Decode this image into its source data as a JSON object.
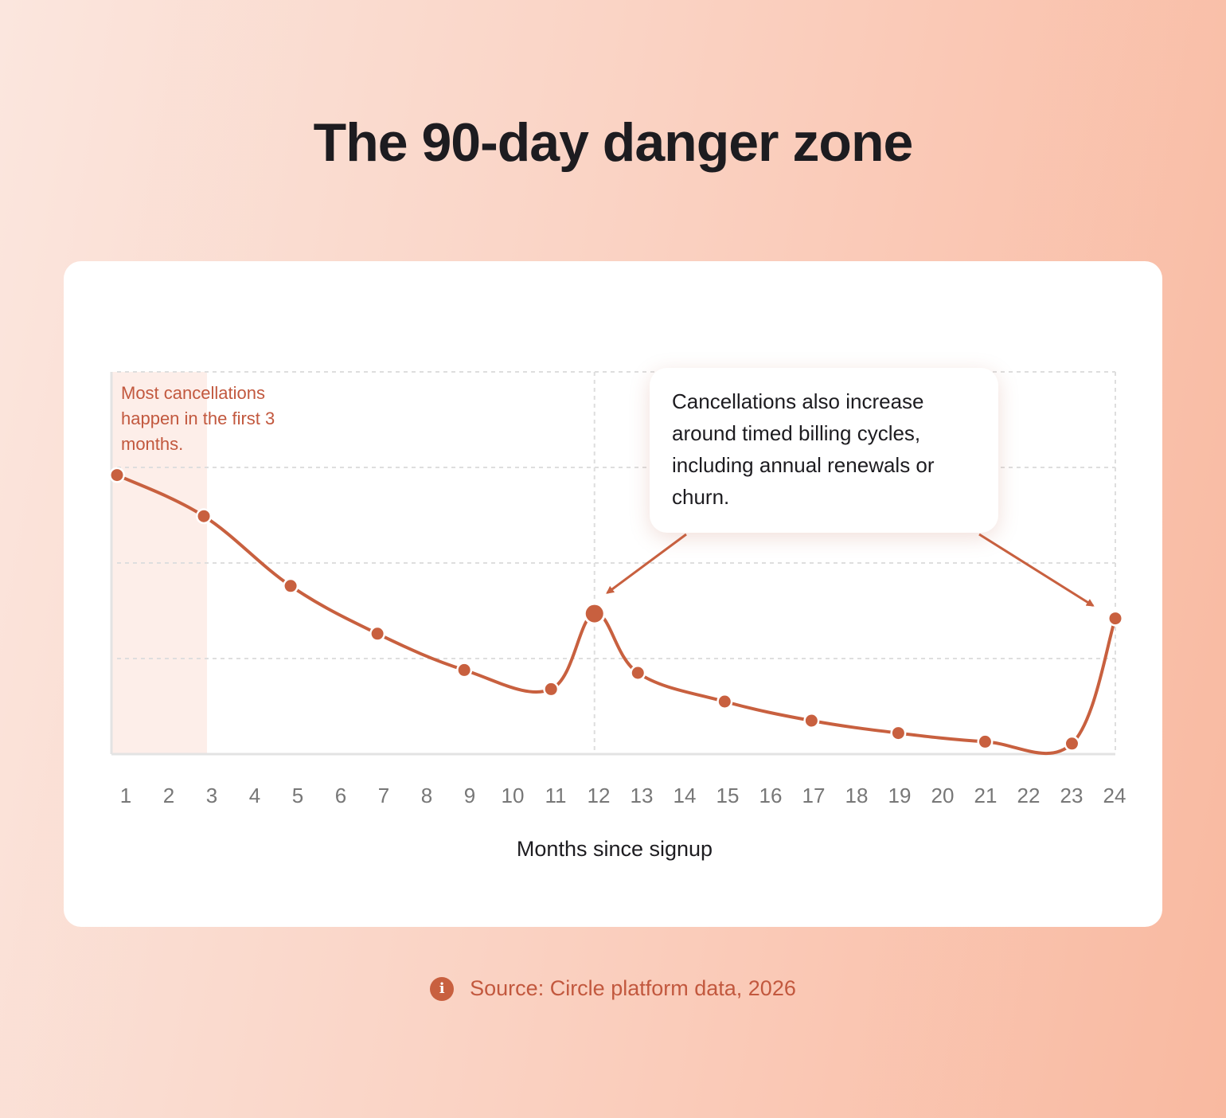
{
  "title": "The 90-day danger zone",
  "source": {
    "icon": "info-icon",
    "text": "Source: Circle platform data, 2026"
  },
  "colors": {
    "accent": "#c8603f",
    "highlight_band": "#fdeee9",
    "grid": "#dedede",
    "axis": "#e3e3e3",
    "tick_text": "#777777"
  },
  "chart_data": {
    "type": "line",
    "title": "The 90-day danger zone",
    "xlabel": "Months since signup",
    "ylabel": "",
    "x_ticks": [
      1,
      2,
      3,
      4,
      5,
      6,
      7,
      8,
      9,
      10,
      11,
      12,
      13,
      14,
      15,
      16,
      17,
      18,
      19,
      20,
      21,
      22,
      23,
      24
    ],
    "xlim": [
      1,
      24
    ],
    "ylim": [
      0,
      4
    ],
    "grid": true,
    "legend": "none",
    "series": [
      {
        "points": [
          {
            "x": 1,
            "y": 2.92
          },
          {
            "x": 3,
            "y": 2.49
          },
          {
            "x": 5,
            "y": 1.76
          },
          {
            "x": 7,
            "y": 1.26
          },
          {
            "x": 9,
            "y": 0.88
          },
          {
            "x": 11,
            "y": 0.68
          },
          {
            "x": 12,
            "y": 1.47
          },
          {
            "x": 13,
            "y": 0.85
          },
          {
            "x": 15,
            "y": 0.55
          },
          {
            "x": 17,
            "y": 0.35
          },
          {
            "x": 19,
            "y": 0.22
          },
          {
            "x": 21,
            "y": 0.13
          },
          {
            "x": 23,
            "y": 0.11
          },
          {
            "x": 24,
            "y": 1.42
          }
        ]
      }
    ],
    "highlight_band": {
      "x_start": 1,
      "x_end": 3
    },
    "annotations": [
      {
        "text": "Most cancellations happen in the first 3 months."
      },
      {
        "text": "Cancellations also increase around timed billing cycles, including annual renewals or churn.",
        "points_to": [
          12,
          24
        ]
      }
    ]
  }
}
